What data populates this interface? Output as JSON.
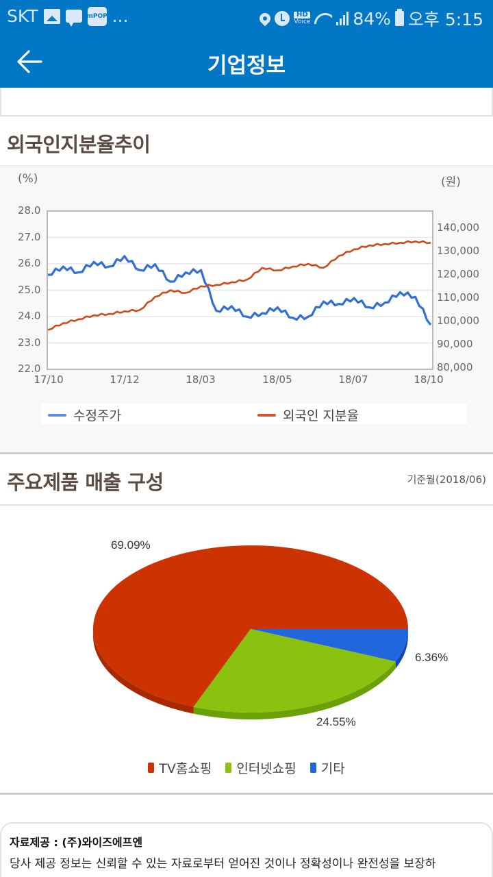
{
  "status_bar": {
    "carrier": "SKT",
    "notif_icons": [
      "image-icon",
      "message-icon",
      "mpop-icon"
    ],
    "mpop_label": "mPOP",
    "more": "...",
    "hd_top": "HD",
    "hd_bottom": "Voice",
    "battery": "84%",
    "time": "오후 5:15"
  },
  "app_bar": {
    "title": "기업정보",
    "back_icon": "arrow-left-icon"
  },
  "foreign_section": {
    "title": "외국인지분율추이"
  },
  "sales_section": {
    "title": "주요제품 매출 구성",
    "basis": "기준월(2018/06)"
  },
  "footer": {
    "source": "자료제공 : (주)와이즈에프엔",
    "disclaimer": "당사 제공 정보는 신뢰할 수 있는 자료로부터 얻어진 것이나 정확성이나 완전성을 보장하"
  },
  "chart_data": [
    {
      "type": "line",
      "title": "외국인지분율추이",
      "xlabel": "",
      "ylabel_left": "(%)",
      "ylabel_right": "(원)",
      "x_ticks": [
        "17/10",
        "17/12",
        "18/03",
        "18/05",
        "18/07",
        "18/10"
      ],
      "ylim_left": [
        22.0,
        28.0
      ],
      "yticks_left": [
        "28.0",
        "27.0",
        "26.0",
        "25.0",
        "24.0",
        "23.0",
        "22.0"
      ],
      "ylim_right": [
        80000,
        140000
      ],
      "yticks_right": [
        "140,000",
        "130,000",
        "120,000",
        "110,000",
        "100,000",
        "90,000",
        "80,000"
      ],
      "grid": true,
      "legend_position": "bottom",
      "x": [
        "17/10",
        "17/10b",
        "17/11",
        "17/11b",
        "17/11c",
        "17/12",
        "17/12b",
        "18/01",
        "18/01b",
        "18/02",
        "18/02b",
        "18/03",
        "18/03b",
        "18/04",
        "18/04b",
        "18/05",
        "18/05b",
        "18/06",
        "18/06b",
        "18/07",
        "18/07b",
        "18/08",
        "18/08b",
        "18/09",
        "18/09b",
        "18/10"
      ],
      "series": [
        {
          "name": "수정주가",
          "axis": "right",
          "color": "#2f6fd6",
          "values": [
            120000,
            123500,
            121000,
            125500,
            123500,
            128000,
            122000,
            124500,
            117000,
            121000,
            122000,
            104500,
            106500,
            102000,
            103500,
            106000,
            101500,
            102000,
            108500,
            107500,
            110000,
            106000,
            108000,
            112500,
            110500,
            98500
          ]
        },
        {
          "name": "외국인 지분율",
          "axis": "left",
          "color": "#cc4a1c",
          "values": [
            23.5,
            23.75,
            23.9,
            24.05,
            24.1,
            24.2,
            24.25,
            24.75,
            25.0,
            24.9,
            25.15,
            25.2,
            25.3,
            25.4,
            25.85,
            25.75,
            25.9,
            26.0,
            25.85,
            26.3,
            26.55,
            26.7,
            26.75,
            26.8,
            26.85,
            26.8
          ]
        }
      ]
    },
    {
      "type": "pie",
      "title": "주요제품 매출 구성",
      "subtitle": "기준월(2018/06)",
      "categories": [
        "TV홈쇼핑",
        "인터넷쇼핑",
        "기타"
      ],
      "values": [
        69.09,
        24.55,
        6.36
      ],
      "labels": [
        "69.09%",
        "24.55%",
        "6.36%"
      ],
      "colors": [
        "#cc3300",
        "#8bc20f",
        "#2266dd"
      ],
      "legend_position": "bottom"
    }
  ]
}
